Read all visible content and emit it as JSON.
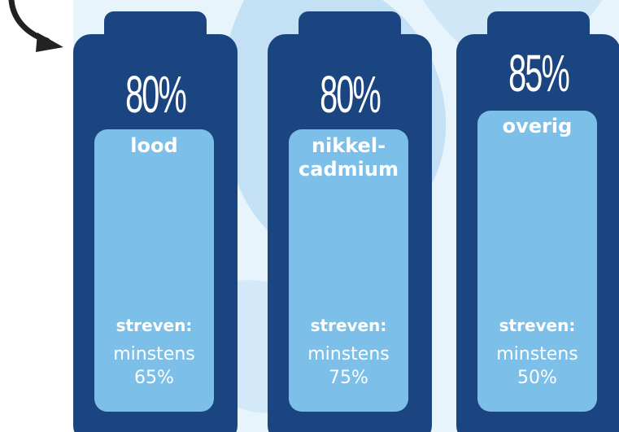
{
  "colors": {
    "battery_dark": "#1b4580",
    "battery_fill": "#7cbfe9",
    "background": "#e8f4fc",
    "text": "#ffffff",
    "arrow": "#222222"
  },
  "decor": {
    "arrow_icon": "curved-arrow-icon"
  },
  "batteries": [
    {
      "percentage": "80%",
      "type": "lood",
      "goal_label": "streven:",
      "goal_line1": "minstens",
      "goal_line2": "65%"
    },
    {
      "percentage": "80%",
      "type_line1": "nikkel-",
      "type_line2": "cadmium",
      "goal_label": "streven:",
      "goal_line1": "minstens",
      "goal_line2": "75%"
    },
    {
      "percentage": "85%",
      "type": "overig",
      "goal_label": "streven:",
      "goal_line1": "minstens",
      "goal_line2": "50%"
    }
  ]
}
